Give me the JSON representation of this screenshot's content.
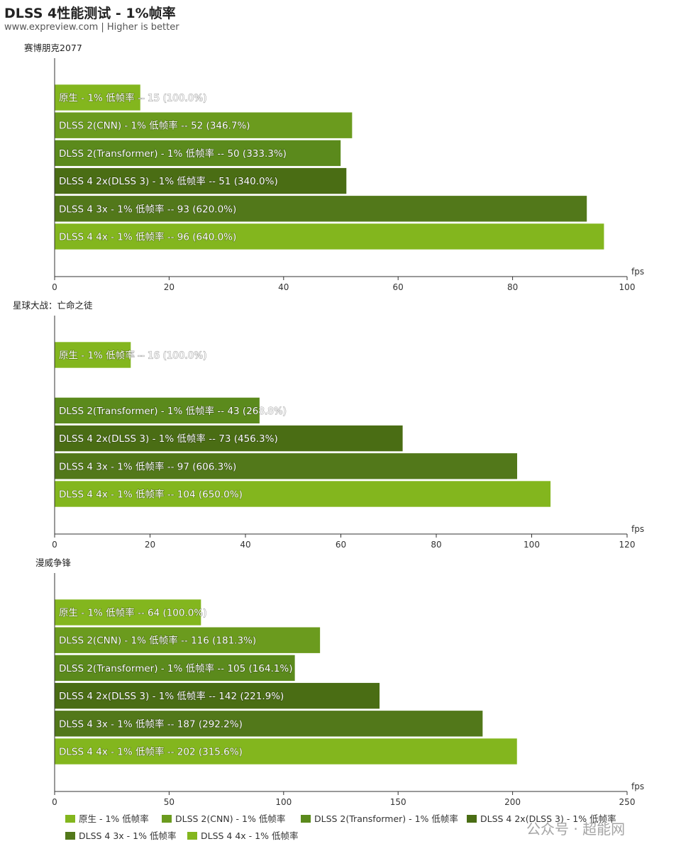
{
  "title": "DLSS 4性能测试 - 1%帧率",
  "subtitle": "www.expreview.com | Higher is better",
  "watermark": "公众号 · 超能网",
  "colors": [
    "#83b61e",
    "#6b9b1e",
    "#5b8a1c",
    "#4a6d14",
    "#52781a",
    "#83b61e"
  ],
  "chart_data": [
    {
      "type": "bar",
      "orientation": "horizontal",
      "title": "赛博朋克2077",
      "xlabel": "fps",
      "xlim": [
        0,
        100
      ],
      "ticks": [
        0,
        20,
        40,
        60,
        80,
        100
      ],
      "bars": [
        {
          "label": "原生 - 1% 低帧率 -- 15 (100.0%)",
          "value": 15,
          "color_index": 0
        },
        {
          "label": "DLSS 2(CNN) - 1% 低帧率 -- 52 (346.7%)",
          "value": 52,
          "color_index": 1
        },
        {
          "label": "DLSS 2(Transformer) - 1% 低帧率 -- 50 (333.3%)",
          "value": 50,
          "color_index": 2
        },
        {
          "label": "DLSS 4 2x(DLSS 3) - 1% 低帧率 -- 51 (340.0%)",
          "value": 51,
          "color_index": 3
        },
        {
          "label": "DLSS 4 3x - 1% 低帧率 -- 93 (620.0%)",
          "value": 93,
          "color_index": 4
        },
        {
          "label": "DLSS 4 4x - 1% 低帧率 -- 96 (640.0%)",
          "value": 96,
          "color_index": 5
        }
      ]
    },
    {
      "type": "bar",
      "orientation": "horizontal",
      "title": "星球大战：亡命之徒",
      "xlabel": "fps",
      "xlim": [
        0,
        120
      ],
      "ticks": [
        0,
        20,
        40,
        60,
        80,
        100,
        120
      ],
      "bars": [
        {
          "label": "原生 - 1% 低帧率 -- 16 (100.0%)",
          "value": 16,
          "color_index": 0
        },
        {
          "label": "",
          "value": null,
          "color_index": 1
        },
        {
          "label": "DLSS 2(Transformer) - 1% 低帧率 -- 43 (268.8%)",
          "value": 43,
          "color_index": 2
        },
        {
          "label": "DLSS 4 2x(DLSS 3) - 1% 低帧率 -- 73 (456.3%)",
          "value": 73,
          "color_index": 3
        },
        {
          "label": "DLSS 4 3x - 1% 低帧率 -- 97 (606.3%)",
          "value": 97,
          "color_index": 4
        },
        {
          "label": "DLSS 4 4x - 1% 低帧率 -- 104 (650.0%)",
          "value": 104,
          "color_index": 5
        }
      ]
    },
    {
      "type": "bar",
      "orientation": "horizontal",
      "title": "漫威争锋",
      "xlabel": "fps",
      "xlim": [
        0,
        250
      ],
      "ticks": [
        0,
        50,
        100,
        150,
        200,
        250
      ],
      "bars": [
        {
          "label": "原生 - 1% 低帧率 -- 64 (100.0%)",
          "value": 64,
          "color_index": 0
        },
        {
          "label": "DLSS 2(CNN) - 1% 低帧率 -- 116 (181.3%)",
          "value": 116,
          "color_index": 1
        },
        {
          "label": "DLSS 2(Transformer) - 1% 低帧率 -- 105 (164.1%)",
          "value": 105,
          "color_index": 2
        },
        {
          "label": "DLSS 4 2x(DLSS 3) - 1% 低帧率 -- 142 (221.9%)",
          "value": 142,
          "color_index": 3
        },
        {
          "label": "DLSS 4 3x - 1% 低帧率 -- 187 (292.2%)",
          "value": 187,
          "color_index": 4
        },
        {
          "label": "DLSS 4 4x - 1% 低帧率 -- 202 (315.6%)",
          "value": 202,
          "color_index": 5
        }
      ]
    }
  ],
  "legend": [
    {
      "label": "原生 - 1% 低帧率",
      "color_index": 0
    },
    {
      "label": "DLSS 2(CNN) - 1% 低帧率",
      "color_index": 1
    },
    {
      "label": "DLSS 2(Transformer) - 1% 低帧率",
      "color_index": 2
    },
    {
      "label": "DLSS 4 2x(DLSS 3) - 1% 低帧率",
      "color_index": 3
    },
    {
      "label": "DLSS 4 3x - 1% 低帧率",
      "color_index": 4
    },
    {
      "label": "DLSS 4 4x - 1% 低帧率",
      "color_index": 5
    }
  ]
}
